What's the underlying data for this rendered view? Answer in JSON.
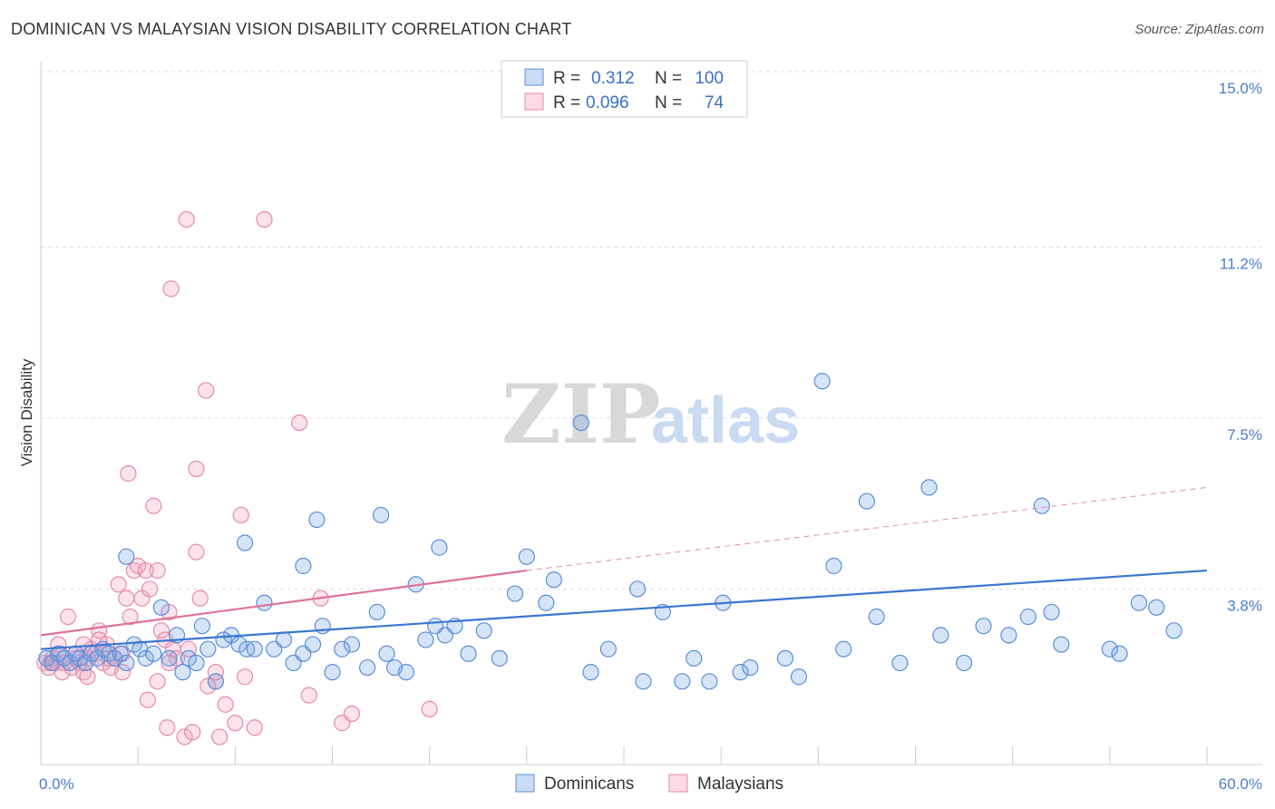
{
  "title": "DOMINICAN VS MALAYSIAN VISION DISABILITY CORRELATION CHART",
  "source": "Source: ZipAtlas.com",
  "watermark": {
    "zip": "ZIP",
    "atlas": "atlas"
  },
  "legend_box": {
    "rows": [
      {
        "series": "Dominicans",
        "r_label": "R =",
        "r_value": "0.312",
        "n_label": "N =",
        "n_value": "100",
        "color": "#5b8fd9"
      },
      {
        "series": "Malaysians",
        "r_label": "R =",
        "r_value": "0.096",
        "n_label": "N =",
        "n_value": "74",
        "color": "#e58aa8"
      }
    ]
  },
  "chart_data": {
    "type": "scatter",
    "title": "DOMINICAN VS MALAYSIAN VISION DISABILITY CORRELATION CHART",
    "xlabel": "",
    "ylabel": "Vision Disability",
    "xlim": [
      0,
      60
    ],
    "ylim": [
      0,
      15
    ],
    "x_tick_labels": [
      {
        "value": 0,
        "label": "0.0%"
      },
      {
        "value": 60,
        "label": "60.0%"
      }
    ],
    "y_tick_labels": [
      {
        "value": 3.8,
        "label": "3.8%"
      },
      {
        "value": 7.5,
        "label": "7.5%"
      },
      {
        "value": 11.2,
        "label": "11.2%"
      },
      {
        "value": 15.0,
        "label": "15.0%"
      }
    ],
    "grid": true,
    "legend": "bottom-center",
    "series": [
      {
        "name": "Dominicans",
        "color": "#5b8fd9",
        "trend": {
          "x0": 0,
          "y0": 2.5,
          "x1": 60,
          "y1": 4.2
        },
        "points": [
          [
            0.3,
            2.3
          ],
          [
            0.6,
            2.2
          ],
          [
            0.9,
            2.4
          ],
          [
            1.2,
            2.3
          ],
          [
            1.5,
            2.2
          ],
          [
            1.8,
            2.4
          ],
          [
            2.0,
            2.3
          ],
          [
            2.3,
            2.2
          ],
          [
            2.6,
            2.4
          ],
          [
            2.9,
            2.3
          ],
          [
            3.2,
            2.5
          ],
          [
            3.5,
            2.4
          ],
          [
            3.8,
            2.3
          ],
          [
            4.1,
            2.4
          ],
          [
            4.4,
            2.2
          ],
          [
            4.8,
            2.6
          ],
          [
            5.1,
            2.5
          ],
          [
            5.4,
            2.3
          ],
          [
            5.8,
            2.4
          ],
          [
            6.2,
            3.4
          ],
          [
            6.6,
            2.3
          ],
          [
            7.0,
            2.8
          ],
          [
            7.3,
            2.0
          ],
          [
            7.6,
            2.3
          ],
          [
            8.0,
            2.2
          ],
          [
            8.3,
            3.0
          ],
          [
            8.6,
            2.5
          ],
          [
            9.0,
            1.8
          ],
          [
            9.4,
            2.7
          ],
          [
            9.8,
            2.8
          ],
          [
            10.2,
            2.6
          ],
          [
            10.6,
            2.5
          ],
          [
            11.0,
            2.5
          ],
          [
            11.5,
            3.5
          ],
          [
            12.0,
            2.5
          ],
          [
            12.5,
            2.7
          ],
          [
            13.0,
            2.2
          ],
          [
            13.5,
            2.4
          ],
          [
            14.0,
            2.6
          ],
          [
            14.5,
            3.0
          ],
          [
            15.0,
            2.0
          ],
          [
            15.5,
            2.5
          ],
          [
            16.0,
            2.6
          ],
          [
            16.8,
            2.1
          ],
          [
            17.3,
            3.3
          ],
          [
            17.8,
            2.4
          ],
          [
            18.2,
            2.1
          ],
          [
            18.8,
            2.0
          ],
          [
            19.3,
            3.9
          ],
          [
            19.8,
            2.7
          ],
          [
            20.3,
            3.0
          ],
          [
            20.8,
            2.8
          ],
          [
            21.3,
            3.0
          ],
          [
            22.0,
            2.4
          ],
          [
            22.8,
            2.9
          ],
          [
            23.6,
            2.3
          ],
          [
            24.4,
            3.7
          ],
          [
            25.0,
            4.5
          ],
          [
            26.0,
            3.5
          ],
          [
            26.4,
            4.0
          ],
          [
            27.8,
            7.4
          ],
          [
            28.3,
            2.0
          ],
          [
            29.2,
            2.5
          ],
          [
            30.7,
            3.8
          ],
          [
            31.0,
            1.8
          ],
          [
            32.0,
            3.3
          ],
          [
            33.0,
            1.8
          ],
          [
            33.6,
            2.3
          ],
          [
            34.4,
            1.8
          ],
          [
            35.1,
            3.5
          ],
          [
            36.0,
            2.0
          ],
          [
            36.5,
            2.1
          ],
          [
            38.3,
            2.3
          ],
          [
            39.0,
            1.9
          ],
          [
            40.2,
            8.3
          ],
          [
            40.8,
            4.3
          ],
          [
            41.3,
            2.5
          ],
          [
            42.5,
            5.7
          ],
          [
            43.0,
            3.2
          ],
          [
            44.2,
            2.2
          ],
          [
            45.7,
            6.0
          ],
          [
            46.3,
            2.8
          ],
          [
            47.5,
            2.2
          ],
          [
            48.5,
            3.0
          ],
          [
            49.8,
            2.8
          ],
          [
            50.8,
            3.2
          ],
          [
            51.5,
            5.6
          ],
          [
            52.0,
            3.3
          ],
          [
            52.5,
            2.6
          ],
          [
            55.0,
            2.5
          ],
          [
            55.5,
            2.4
          ],
          [
            56.5,
            3.5
          ],
          [
            57.4,
            3.4
          ],
          [
            58.3,
            2.9
          ],
          [
            10.5,
            4.8
          ],
          [
            14.2,
            5.3
          ],
          [
            13.5,
            4.3
          ],
          [
            17.5,
            5.4
          ],
          [
            20.5,
            4.7
          ],
          [
            4.4,
            4.5
          ]
        ]
      },
      {
        "name": "Malaysians",
        "color": "#e58aa8",
        "trend": {
          "x0": 0,
          "y0": 2.8,
          "x1": 25,
          "y1": 4.2
        },
        "trend_dashed": {
          "x0": 25,
          "y0": 4.2,
          "x1": 60,
          "y1": 6.0
        },
        "points": [
          [
            0.2,
            2.2
          ],
          [
            0.4,
            2.1
          ],
          [
            0.6,
            2.3
          ],
          [
            0.8,
            2.2
          ],
          [
            1.0,
            2.4
          ],
          [
            1.2,
            2.2
          ],
          [
            1.4,
            3.2
          ],
          [
            1.6,
            2.1
          ],
          [
            1.8,
            2.3
          ],
          [
            2.0,
            2.2
          ],
          [
            2.2,
            2.0
          ],
          [
            2.4,
            2.3
          ],
          [
            2.6,
            2.5
          ],
          [
            2.8,
            2.4
          ],
          [
            3.0,
            2.9
          ],
          [
            3.2,
            2.2
          ],
          [
            3.4,
            2.6
          ],
          [
            3.6,
            2.1
          ],
          [
            3.8,
            2.3
          ],
          [
            4.0,
            3.9
          ],
          [
            4.2,
            2.0
          ],
          [
            4.4,
            3.6
          ],
          [
            4.6,
            3.2
          ],
          [
            4.8,
            4.2
          ],
          [
            5.0,
            4.3
          ],
          [
            5.2,
            3.6
          ],
          [
            5.4,
            4.2
          ],
          [
            5.6,
            3.8
          ],
          [
            5.8,
            5.6
          ],
          [
            6.0,
            4.2
          ],
          [
            6.2,
            2.9
          ],
          [
            6.4,
            2.7
          ],
          [
            6.6,
            3.3
          ],
          [
            6.8,
            2.5
          ],
          [
            7.0,
            2.3
          ],
          [
            7.4,
            0.6
          ],
          [
            7.8,
            0.7
          ],
          [
            8.2,
            3.6
          ],
          [
            8.6,
            1.7
          ],
          [
            9.0,
            1.8
          ],
          [
            9.5,
            1.3
          ],
          [
            10.0,
            0.9
          ],
          [
            10.5,
            1.9
          ],
          [
            11.0,
            0.8
          ],
          [
            5.5,
            1.4
          ],
          [
            6.0,
            1.8
          ],
          [
            6.5,
            0.8
          ],
          [
            4.5,
            6.3
          ],
          [
            6.7,
            10.3
          ],
          [
            7.5,
            11.8
          ],
          [
            8.5,
            8.1
          ],
          [
            9.2,
            0.6
          ],
          [
            10.3,
            5.4
          ],
          [
            11.5,
            11.8
          ],
          [
            13.3,
            7.4
          ],
          [
            14.4,
            3.6
          ],
          [
            15.5,
            0.9
          ],
          [
            16.0,
            1.1
          ],
          [
            20.0,
            1.2
          ],
          [
            8.0,
            6.4
          ],
          [
            8.0,
            4.6
          ],
          [
            3.0,
            2.7
          ],
          [
            2.4,
            1.9
          ],
          [
            1.8,
            2.4
          ],
          [
            0.9,
            2.6
          ],
          [
            1.1,
            2.0
          ],
          [
            0.5,
            2.2
          ],
          [
            3.5,
            2.3
          ],
          [
            2.2,
            2.6
          ],
          [
            4.2,
            2.4
          ],
          [
            6.6,
            2.2
          ],
          [
            7.6,
            2.5
          ],
          [
            9.0,
            2.0
          ],
          [
            13.8,
            1.5
          ]
        ]
      }
    ]
  },
  "bottom_legend": [
    "Dominicans",
    "Malaysians"
  ]
}
